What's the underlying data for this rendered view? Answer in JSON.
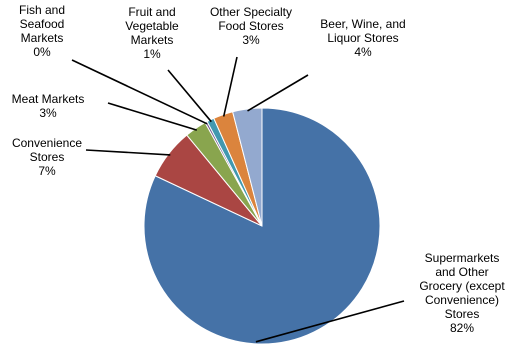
{
  "chart_data": {
    "type": "pie",
    "title": "",
    "start_angle_deg": 0,
    "direction": "clockwise",
    "slices": [
      {
        "label": [
          "Supermarkets",
          "and Other",
          "Grocery (except",
          "Convenience)",
          "Stores"
        ],
        "pct_label": "82%",
        "value": 82.0,
        "color": "#4572A7"
      },
      {
        "label": [
          "Convenience",
          "Stores"
        ],
        "pct_label": "7%",
        "value": 7.0,
        "color": "#AA4643"
      },
      {
        "label": [
          "Meat Markets"
        ],
        "pct_label": "3%",
        "value": 3.0,
        "color": "#89A54E"
      },
      {
        "label": [
          "Fish and",
          "Seafood",
          "Markets"
        ],
        "pct_label": "0%",
        "value": 0.3,
        "color": "#71588F"
      },
      {
        "label": [
          "Fruit and",
          "Vegetable",
          "Markets"
        ],
        "pct_label": "1%",
        "value": 1.0,
        "color": "#4198AF"
      },
      {
        "label": [
          "Other Specialty",
          "Food Stores"
        ],
        "pct_label": "3%",
        "value": 2.7,
        "color": "#DB843D"
      },
      {
        "label": [
          "Beer, Wine, and",
          "Liquor Stores"
        ],
        "pct_label": "4%",
        "value": 4.0,
        "color": "#93A9CF"
      }
    ]
  }
}
